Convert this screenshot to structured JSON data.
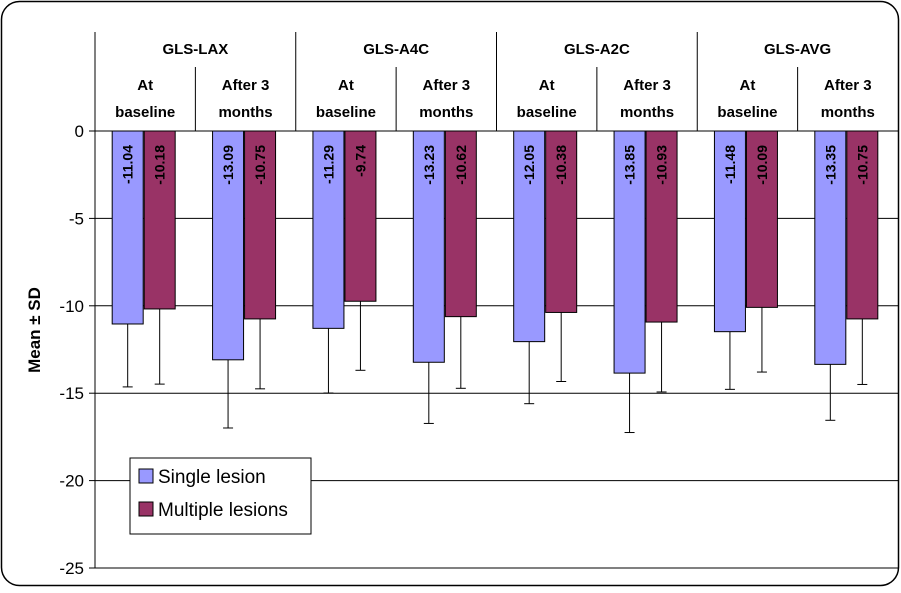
{
  "chart_data": {
    "type": "bar",
    "ylabel": "Mean ± SD",
    "ylim": [
      -25,
      0
    ],
    "yticks": [
      "0",
      "-5",
      "-10",
      "-15",
      "-20",
      "-25"
    ],
    "grid": true,
    "legend_position": "bottom-left",
    "groups": [
      {
        "name": "GLS-LAX",
        "subgroups": [
          {
            "label_line1": "At",
            "label_line2": "baseline",
            "values": [
              -11.04,
              -10.18
            ],
            "labels": [
              "-11.04",
              "-10.18"
            ],
            "sd": [
              3.6,
              4.3
            ]
          },
          {
            "label_line1": "After 3",
            "label_line2": "months",
            "values": [
              -13.09,
              -10.75
            ],
            "labels": [
              "-13.09",
              "-10.75"
            ],
            "sd": [
              3.9,
              4.0
            ]
          }
        ]
      },
      {
        "name": "GLS-A4C",
        "subgroups": [
          {
            "label_line1": "At",
            "label_line2": "baseline",
            "values": [
              -11.29,
              -9.74
            ],
            "labels": [
              "-11.29",
              "-9.74"
            ],
            "sd": [
              3.7,
              3.95
            ]
          },
          {
            "label_line1": "After 3",
            "label_line2": "months",
            "values": [
              -13.23,
              -10.62
            ],
            "labels": [
              "-13.23",
              "-10.62"
            ],
            "sd": [
              3.5,
              4.1
            ]
          }
        ]
      },
      {
        "name": "GLS-A2C",
        "subgroups": [
          {
            "label_line1": "At",
            "label_line2": "baseline",
            "values": [
              -12.05,
              -10.38
            ],
            "labels": [
              "-12.05",
              "-10.38"
            ],
            "sd": [
              3.55,
              3.95
            ]
          },
          {
            "label_line1": "After 3",
            "label_line2": "months",
            "values": [
              -13.85,
              -10.93
            ],
            "labels": [
              "-13.85",
              "-10.93"
            ],
            "sd": [
              3.4,
              4.0
            ]
          }
        ]
      },
      {
        "name": "GLS-AVG",
        "subgroups": [
          {
            "label_line1": "At",
            "label_line2": "baseline",
            "values": [
              -11.48,
              -10.09
            ],
            "labels": [
              "-11.48",
              "-10.09"
            ],
            "sd": [
              3.3,
              3.7
            ]
          },
          {
            "label_line1": "After 3",
            "label_line2": "months",
            "values": [
              -13.35,
              -10.75
            ],
            "labels": [
              "-13.35",
              "-10.75"
            ],
            "sd": [
              3.2,
              3.75
            ]
          }
        ]
      }
    ],
    "series": [
      {
        "name": "Single lesion",
        "color": "#9999ff"
      },
      {
        "name": "Multiple lesions",
        "color": "#993366"
      }
    ]
  }
}
